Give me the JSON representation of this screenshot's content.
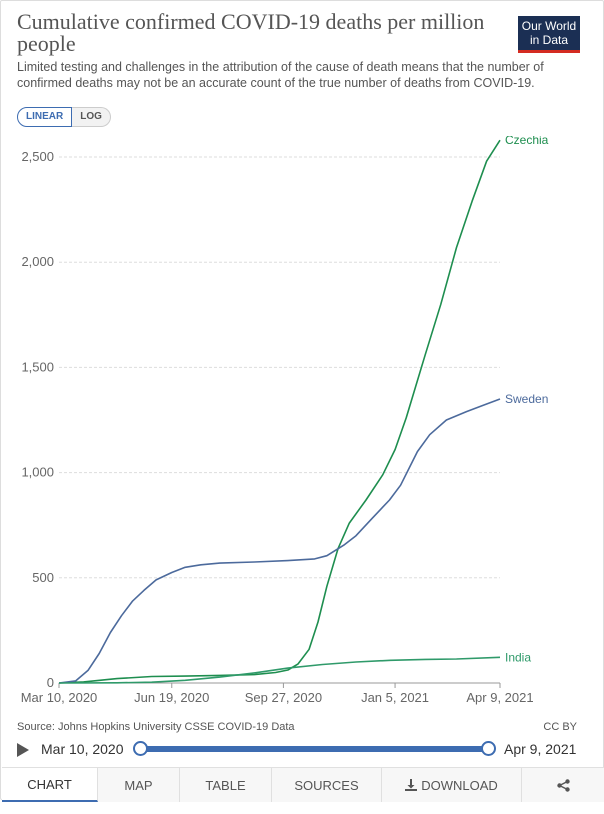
{
  "header": {
    "title": "Cumulative confirmed COVID-19 deaths per million people",
    "subtitle": "Limited testing and challenges in the attribution of the cause of death means that the number of confirmed deaths may not be an accurate count of the true number of deaths from COVID-19.",
    "logo_line1": "Our World",
    "logo_line2": "in Data"
  },
  "controls": {
    "linear_label": "LINEAR",
    "log_label": "LOG"
  },
  "colors": {
    "czechia": "#1e8e4f",
    "sweden": "#4c6a9c",
    "india": "#2f9a6a",
    "accent": "#3d6cb1"
  },
  "chart_data": {
    "type": "line",
    "title": "Cumulative confirmed COVID-19 deaths per million people",
    "xlabel": "",
    "ylabel": "",
    "ylim": [
      0,
      2600
    ],
    "yticks": [
      0,
      500,
      1000,
      1500,
      2000,
      2500
    ],
    "ytick_labels": [
      "0",
      "500",
      "1,000",
      "1,500",
      "2,000",
      "2,500"
    ],
    "xticks": [
      "2020-03-10",
      "2020-06-19",
      "2020-09-27",
      "2021-01-05",
      "2021-04-09"
    ],
    "xtick_labels": [
      "Mar 10, 2020",
      "Jun 19, 2020",
      "Sep 27, 2020",
      "Jan 5, 2021",
      "Apr 9, 2021"
    ],
    "grid": true,
    "scale": "linear",
    "series": [
      {
        "name": "Czechia",
        "color": "#1e8e4f",
        "points": [
          [
            "2020-03-10",
            0
          ],
          [
            "2020-04-01",
            5
          ],
          [
            "2020-05-01",
            21
          ],
          [
            "2020-06-01",
            31
          ],
          [
            "2020-07-01",
            33
          ],
          [
            "2020-08-01",
            36
          ],
          [
            "2020-09-01",
            40
          ],
          [
            "2020-09-20",
            50
          ],
          [
            "2020-10-01",
            62
          ],
          [
            "2020-10-10",
            90
          ],
          [
            "2020-10-20",
            160
          ],
          [
            "2020-10-28",
            290
          ],
          [
            "2020-11-05",
            460
          ],
          [
            "2020-11-15",
            640
          ],
          [
            "2020-11-25",
            760
          ],
          [
            "2020-12-10",
            870
          ],
          [
            "2020-12-25",
            990
          ],
          [
            "2021-01-05",
            1110
          ],
          [
            "2021-01-15",
            1260
          ],
          [
            "2021-02-01",
            1560
          ],
          [
            "2021-02-15",
            1800
          ],
          [
            "2021-03-01",
            2070
          ],
          [
            "2021-03-15",
            2290
          ],
          [
            "2021-03-28",
            2480
          ],
          [
            "2021-04-09",
            2580
          ]
        ]
      },
      {
        "name": "Sweden",
        "color": "#4c6a9c",
        "points": [
          [
            "2020-03-10",
            0
          ],
          [
            "2020-03-25",
            10
          ],
          [
            "2020-04-05",
            60
          ],
          [
            "2020-04-15",
            140
          ],
          [
            "2020-04-25",
            240
          ],
          [
            "2020-05-05",
            320
          ],
          [
            "2020-05-15",
            390
          ],
          [
            "2020-05-25",
            440
          ],
          [
            "2020-06-05",
            490
          ],
          [
            "2020-06-19",
            525
          ],
          [
            "2020-07-01",
            550
          ],
          [
            "2020-07-15",
            562
          ],
          [
            "2020-08-01",
            570
          ],
          [
            "2020-09-01",
            575
          ],
          [
            "2020-10-01",
            582
          ],
          [
            "2020-10-25",
            590
          ],
          [
            "2020-11-05",
            605
          ],
          [
            "2020-11-20",
            655
          ],
          [
            "2020-12-01",
            700
          ],
          [
            "2020-12-15",
            780
          ],
          [
            "2020-12-31",
            870
          ],
          [
            "2021-01-10",
            940
          ],
          [
            "2021-01-25",
            1100
          ],
          [
            "2021-02-05",
            1180
          ],
          [
            "2021-02-20",
            1250
          ],
          [
            "2021-03-10",
            1290
          ],
          [
            "2021-03-25",
            1320
          ],
          [
            "2021-04-09",
            1350
          ]
        ]
      },
      {
        "name": "India",
        "color": "#2f9a6a",
        "points": [
          [
            "2020-03-10",
            0
          ],
          [
            "2020-05-01",
            1
          ],
          [
            "2020-06-01",
            4
          ],
          [
            "2020-07-01",
            13
          ],
          [
            "2020-08-01",
            28
          ],
          [
            "2020-09-01",
            48
          ],
          [
            "2020-10-01",
            71
          ],
          [
            "2020-11-01",
            88
          ],
          [
            "2020-12-01",
            100
          ],
          [
            "2021-01-01",
            108
          ],
          [
            "2021-02-01",
            112
          ],
          [
            "2021-03-01",
            114
          ],
          [
            "2021-04-09",
            122
          ]
        ]
      }
    ]
  },
  "footer": {
    "source": "Source: Johns Hopkins University CSSE COVID-19 Data",
    "license": "CC BY"
  },
  "timeline": {
    "start_label": "Mar 10, 2020",
    "end_label": "Apr 9, 2021"
  },
  "tabs": [
    {
      "label": "CHART",
      "active": true
    },
    {
      "label": "MAP"
    },
    {
      "label": "TABLE"
    },
    {
      "label": "SOURCES"
    },
    {
      "label": "DOWNLOAD",
      "icon": "download-icon"
    },
    {
      "label": "",
      "icon": "share-icon"
    }
  ]
}
